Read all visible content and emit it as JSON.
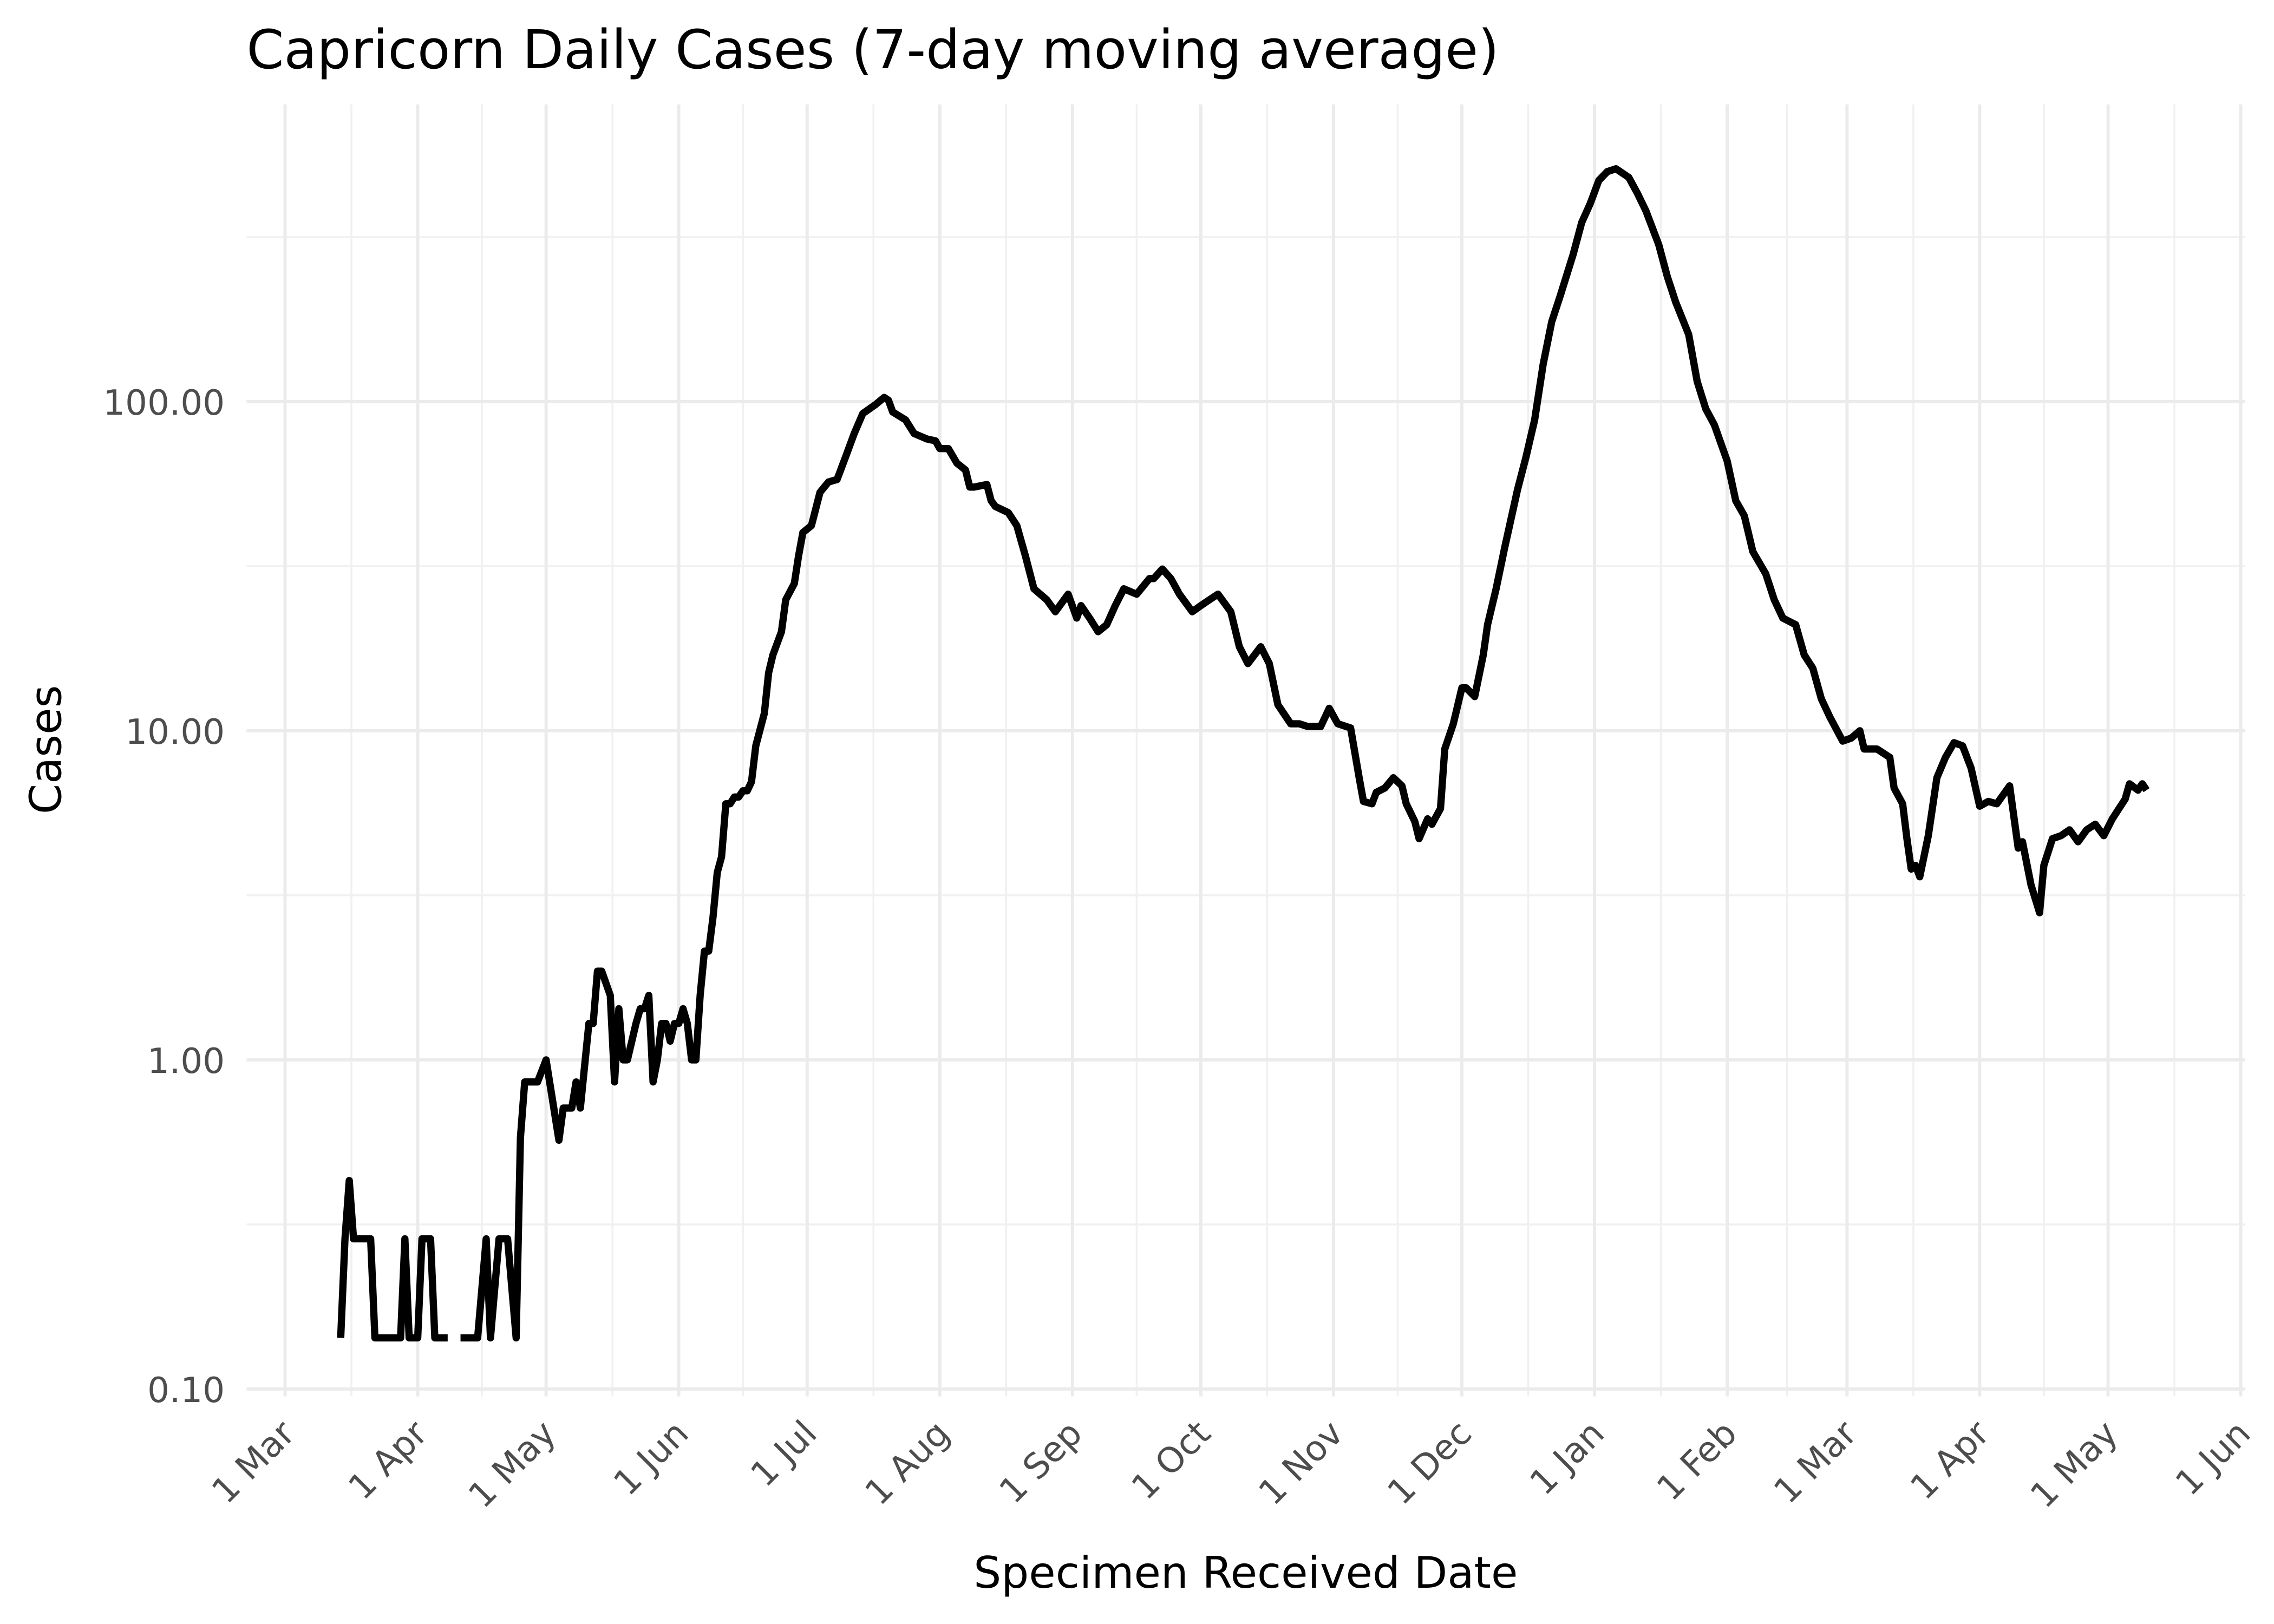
{
  "chart_data": {
    "type": "line",
    "title": "Capricorn Daily Cases (7-day moving average)",
    "x_label": "Specimen Received Date",
    "y_label": "Cases",
    "log_y": true,
    "grid": true,
    "xlim": [
      -9,
      458
    ],
    "ylim": [
      0.095,
      800
    ],
    "xticks": [
      {
        "value": 0,
        "label": "1 Mar"
      },
      {
        "value": 31,
        "label": "1 Apr"
      },
      {
        "value": 61,
        "label": "1 May"
      },
      {
        "value": 92,
        "label": "1 Jun"
      },
      {
        "value": 122,
        "label": "1 Jul"
      },
      {
        "value": 153,
        "label": "1 Aug"
      },
      {
        "value": 184,
        "label": "1 Sep"
      },
      {
        "value": 214,
        "label": "1 Oct"
      },
      {
        "value": 245,
        "label": "1 Nov"
      },
      {
        "value": 275,
        "label": "1 Dec"
      },
      {
        "value": 306,
        "label": "1 Jan"
      },
      {
        "value": 337,
        "label": "1 Feb"
      },
      {
        "value": 365,
        "label": "1 Mar"
      },
      {
        "value": 396,
        "label": "1 Apr"
      },
      {
        "value": 426,
        "label": "1 May"
      },
      {
        "value": 457,
        "label": "1 Jun"
      }
    ],
    "yticks": [
      {
        "value": 0.1,
        "label": "0.10"
      },
      {
        "value": 1,
        "label": "1.00"
      },
      {
        "value": 10,
        "label": "10.00"
      },
      {
        "value": 100,
        "label": "100.00"
      }
    ],
    "series": [
      {
        "name": "Cases",
        "color": "#000000",
        "x": [
          13,
          14,
          15,
          16,
          20,
          21,
          27,
          28,
          29,
          31,
          32,
          34,
          35,
          38,
          39,
          41,
          45,
          47,
          48,
          50,
          52,
          54,
          55,
          56,
          59,
          61,
          64,
          65,
          67,
          68,
          69,
          71,
          72,
          73,
          74,
          76,
          77,
          78,
          79,
          80,
          82,
          83,
          84,
          85,
          86,
          87,
          88,
          89,
          90,
          91,
          92,
          93,
          94,
          95,
          96,
          97,
          98,
          99,
          100,
          101,
          102,
          103,
          104,
          105,
          106,
          107,
          108,
          109,
          110,
          112,
          113,
          114,
          116,
          117,
          119,
          120,
          121,
          123,
          125,
          126,
          127,
          129,
          131,
          133,
          135,
          138,
          140,
          141,
          142,
          145,
          147,
          150,
          152,
          153,
          155,
          157,
          159,
          160,
          161,
          164,
          165,
          166,
          169,
          171,
          173,
          175,
          178,
          180,
          183,
          185,
          186,
          188,
          190,
          192,
          194,
          196,
          199,
          202,
          203,
          205,
          207,
          209,
          212,
          214,
          216,
          218,
          221,
          223,
          225,
          228,
          230,
          232,
          235,
          237,
          239,
          242,
          244,
          246,
          249,
          251,
          252,
          254,
          255,
          257,
          259,
          261,
          262,
          264,
          265,
          267,
          268,
          270,
          271,
          273,
          275,
          276,
          278,
          280,
          281,
          283,
          285,
          288,
          290,
          292,
          294,
          296,
          298,
          301,
          303,
          305,
          307,
          309,
          311,
          314,
          316,
          318,
          321,
          323,
          325,
          328,
          330,
          332,
          334,
          337,
          339,
          341,
          343,
          346,
          348,
          350,
          353,
          355,
          357,
          359,
          361,
          364,
          366,
          368,
          369,
          372,
          375,
          376,
          378,
          379,
          380,
          381,
          382,
          384,
          386,
          388,
          390,
          392,
          394,
          396,
          398,
          400,
          403,
          405,
          406,
          408,
          410,
          411,
          413,
          415,
          417,
          419,
          421,
          423,
          425,
          427,
          430,
          431,
          433,
          434,
          435
        ],
        "values": [
          0.143,
          0.286,
          0.43,
          0.286,
          0.286,
          0.143,
          0.143,
          0.286,
          0.143,
          0.143,
          0.286,
          0.286,
          0.143,
          0.143,
          null,
          0.143,
          0.143,
          0.286,
          0.143,
          0.286,
          0.286,
          0.143,
          0.58,
          0.857,
          0.857,
          1.0,
          0.57,
          0.714,
          0.714,
          0.857,
          0.714,
          1.29,
          1.29,
          1.86,
          1.86,
          1.57,
          0.857,
          1.43,
          1.0,
          1.0,
          1.29,
          1.43,
          1.43,
          1.57,
          0.857,
          1.0,
          1.29,
          1.29,
          1.14,
          1.29,
          1.29,
          1.43,
          1.29,
          1.0,
          1.0,
          1.57,
          2.14,
          2.14,
          2.71,
          3.71,
          4.14,
          6.0,
          6.0,
          6.29,
          6.29,
          6.57,
          6.57,
          7.0,
          9.0,
          11.3,
          15,
          17,
          20,
          25,
          28,
          34,
          40,
          42,
          53,
          55,
          57,
          58,
          68,
          80,
          92,
          98,
          103,
          101,
          93,
          88,
          80,
          77,
          76,
          72,
          72,
          65,
          62,
          55,
          55,
          56,
          50,
          48,
          46,
          42,
          34,
          27,
          25,
          23,
          26,
          22,
          24,
          22,
          20,
          21,
          24,
          27,
          26,
          29,
          29,
          31,
          29,
          26,
          23,
          24,
          25,
          26,
          23,
          18,
          16,
          18,
          16,
          12,
          10.5,
          10.5,
          10.3,
          10.3,
          11.7,
          10.5,
          10.2,
          7.2,
          6.1,
          6.0,
          6.5,
          6.7,
          7.2,
          6.8,
          6.0,
          5.3,
          4.7,
          5.4,
          5.2,
          5.8,
          8.8,
          10.5,
          13.5,
          13.5,
          12.7,
          17,
          21,
          27,
          36,
          54,
          68,
          88,
          130,
          175,
          210,
          280,
          350,
          400,
          470,
          500,
          510,
          480,
          430,
          380,
          300,
          240,
          200,
          160,
          115,
          95,
          85,
          66,
          50,
          45,
          35,
          30,
          25,
          22,
          21,
          17,
          15.5,
          12.5,
          11,
          9.3,
          9.5,
          10,
          8.8,
          8.8,
          8.3,
          6.7,
          6.0,
          4.7,
          3.8,
          3.9,
          3.6,
          4.8,
          7.2,
          8.3,
          9.2,
          9.0,
          7.7,
          5.9,
          6.1,
          6.0,
          6.8,
          4.4,
          4.6,
          3.4,
          2.8,
          3.9,
          4.7,
          4.8,
          5.0,
          4.6,
          5.0,
          5.2,
          4.8,
          5.4,
          6.2,
          6.9,
          6.6,
          6.9,
          6.6
        ]
      }
    ]
  }
}
